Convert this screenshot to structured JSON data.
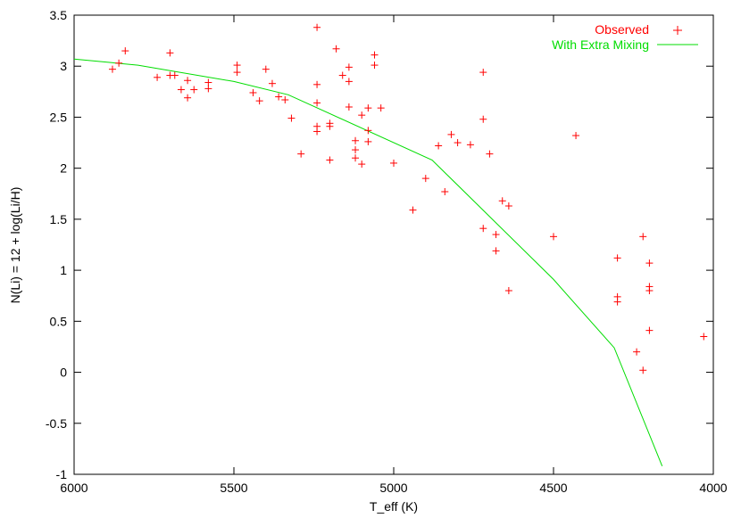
{
  "chart_data": {
    "type": "scatter",
    "xlabel": "T_eff (K)",
    "ylabel": "N(Li) = 12 + log(Li/H)",
    "xlim": [
      6000,
      4000
    ],
    "ylim": [
      -1,
      3.5
    ],
    "x_reversed": true,
    "x_ticks": [
      "6000",
      "5500",
      "5000",
      "4500",
      "4000"
    ],
    "y_ticks": [
      "-1",
      "-0.5",
      "0",
      "0.5",
      "1",
      "1.5",
      "2",
      "2.5",
      "3",
      "3.5"
    ],
    "x_tick_values": [
      6000,
      5500,
      5000,
      4500,
      4000
    ],
    "y_tick_values": [
      -1,
      -0.5,
      0,
      0.5,
      1,
      1.5,
      2,
      2.5,
      3,
      3.5
    ],
    "grid": false,
    "legend_position": "top-right",
    "colors": {
      "observed": "#ff0000",
      "model": "#00dd00"
    },
    "series": [
      {
        "name": "Observed",
        "type": "scatter",
        "marker": "+",
        "points": [
          [
            5880,
            2.97
          ],
          [
            5860,
            3.03
          ],
          [
            5840,
            3.15
          ],
          [
            5740,
            2.89
          ],
          [
            5700,
            3.13
          ],
          [
            5700,
            2.91
          ],
          [
            5685,
            2.91
          ],
          [
            5665,
            2.77
          ],
          [
            5645,
            2.86
          ],
          [
            5645,
            2.69
          ],
          [
            5625,
            2.77
          ],
          [
            5580,
            2.84
          ],
          [
            5580,
            2.78
          ],
          [
            5490,
            3.01
          ],
          [
            5490,
            2.94
          ],
          [
            5440,
            2.74
          ],
          [
            5420,
            2.66
          ],
          [
            5400,
            2.97
          ],
          [
            5380,
            2.83
          ],
          [
            5360,
            2.7
          ],
          [
            5340,
            2.67
          ],
          [
            5320,
            2.49
          ],
          [
            5290,
            2.14
          ],
          [
            5240,
            3.38
          ],
          [
            5240,
            2.82
          ],
          [
            5240,
            2.64
          ],
          [
            5240,
            2.41
          ],
          [
            5240,
            2.36
          ],
          [
            5200,
            2.44
          ],
          [
            5200,
            2.41
          ],
          [
            5200,
            2.08
          ],
          [
            5180,
            3.17
          ],
          [
            5160,
            2.91
          ],
          [
            5140,
            2.99
          ],
          [
            5140,
            2.85
          ],
          [
            5140,
            2.6
          ],
          [
            5120,
            2.27
          ],
          [
            5120,
            2.18
          ],
          [
            5120,
            2.1
          ],
          [
            5100,
            2.52
          ],
          [
            5100,
            2.04
          ],
          [
            5080,
            2.59
          ],
          [
            5080,
            2.37
          ],
          [
            5080,
            2.26
          ],
          [
            5060,
            3.11
          ],
          [
            5060,
            3.01
          ],
          [
            5040,
            2.59
          ],
          [
            5000,
            2.05
          ],
          [
            4940,
            1.59
          ],
          [
            4900,
            1.9
          ],
          [
            4860,
            2.22
          ],
          [
            4840,
            1.77
          ],
          [
            4820,
            2.33
          ],
          [
            4800,
            2.25
          ],
          [
            4760,
            2.23
          ],
          [
            4720,
            2.94
          ],
          [
            4720,
            2.48
          ],
          [
            4720,
            1.41
          ],
          [
            4700,
            2.14
          ],
          [
            4680,
            1.35
          ],
          [
            4680,
            1.19
          ],
          [
            4660,
            1.68
          ],
          [
            4640,
            1.63
          ],
          [
            4640,
            0.8
          ],
          [
            4500,
            1.33
          ],
          [
            4430,
            2.32
          ],
          [
            4300,
            1.12
          ],
          [
            4300,
            0.74
          ],
          [
            4300,
            0.69
          ],
          [
            4240,
            0.2
          ],
          [
            4220,
            1.33
          ],
          [
            4220,
            0.02
          ],
          [
            4200,
            1.07
          ],
          [
            4200,
            0.84
          ],
          [
            4200,
            0.8
          ],
          [
            4200,
            0.41
          ],
          [
            4030,
            0.35
          ]
        ]
      },
      {
        "name": "With Extra Mixing",
        "type": "line",
        "points": [
          [
            6000,
            3.07
          ],
          [
            5800,
            3.01
          ],
          [
            5500,
            2.85
          ],
          [
            5330,
            2.72
          ],
          [
            4880,
            2.08
          ],
          [
            4500,
            0.91
          ],
          [
            4310,
            0.24
          ],
          [
            4160,
            -0.92
          ]
        ]
      }
    ]
  }
}
